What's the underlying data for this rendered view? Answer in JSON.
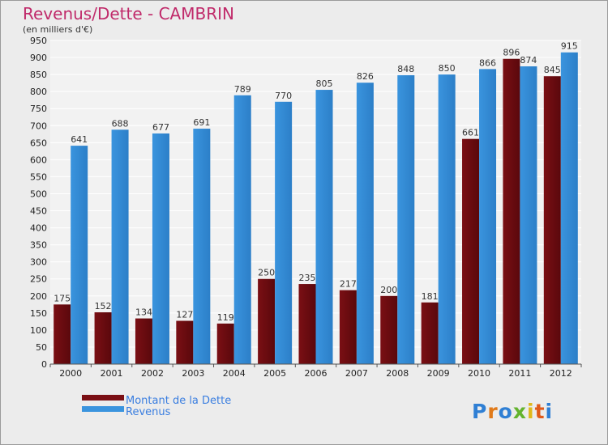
{
  "colors": {
    "dette": "#7a0f14",
    "revenus": "#3a94de",
    "title": "#c02a6a",
    "legend_text": "#3a7ee0",
    "frame_bg": "#ececec",
    "plot_bg": "#f2f2f2",
    "grid": "#ffffff",
    "axis_text": "#222222"
  },
  "chart_data": {
    "type": "bar",
    "title": "Revenus/Dette - CAMBRIN",
    "subtitle": "(en milliers d'€)",
    "categories": [
      "2000",
      "2001",
      "2002",
      "2003",
      "2004",
      "2005",
      "2006",
      "2007",
      "2008",
      "2009",
      "2010",
      "2011",
      "2012"
    ],
    "series": [
      {
        "name": "Montant de la Dette",
        "values": [
          175,
          152,
          134,
          127,
          119,
          250,
          235,
          217,
          200,
          181,
          661,
          896,
          845
        ]
      },
      {
        "name": "Revenus",
        "values": [
          641,
          688,
          677,
          691,
          789,
          770,
          805,
          826,
          848,
          850,
          866,
          874,
          915
        ]
      }
    ],
    "ylim": [
      0,
      950
    ],
    "ytick_step": 50,
    "grid": true,
    "legend_position": "bottom-left"
  },
  "branding": {
    "logo_text": "Proxiti"
  }
}
